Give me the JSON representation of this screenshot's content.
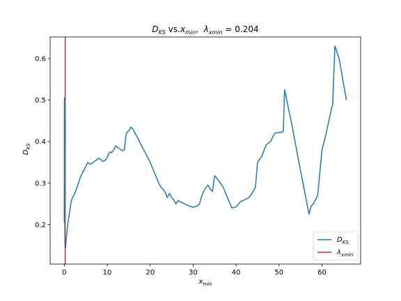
{
  "chart_data": {
    "type": "line",
    "title": "D_KS vs.x_min,  λ_xmin = 0.204",
    "title_parts": {
      "d_main": "D",
      "d_sub": "KS",
      "vs": " vs.",
      "x_main": "x",
      "x_sub": "min",
      "comma": ",  ",
      "lambda_main": "λ",
      "lambda_sub": "xmin",
      "equals": " = 0.204"
    },
    "xlabel": "x_min",
    "xlabel_parts": {
      "main": "x",
      "sub": "min"
    },
    "ylabel": "D_KS",
    "ylabel_parts": {
      "main": "D",
      "sub": "KS"
    },
    "xlim": [
      -3.3,
      69.0
    ],
    "ylim": [
      0.105,
      0.652
    ],
    "xticks": [
      0,
      10,
      20,
      30,
      40,
      50,
      60
    ],
    "xtick_labels": [
      "0",
      "10",
      "20",
      "30",
      "40",
      "50",
      "60"
    ],
    "yticks": [
      0.2,
      0.3,
      0.4,
      0.5,
      0.6
    ],
    "ytick_labels": [
      "0.2",
      "0.3",
      "0.4",
      "0.5",
      "0.6"
    ],
    "grid": false,
    "legend_position": "lower right",
    "colors": {
      "series": "#1f77b4",
      "vline": "#d62728"
    },
    "series": [
      {
        "name": "D_KS",
        "legend_main": "D",
        "legend_sub": "KS",
        "x": [
          0.0,
          0.03,
          0.06,
          0.09,
          0.12,
          0.15,
          0.18,
          0.204,
          0.3,
          0.5,
          0.8,
          1.0,
          1.3,
          1.6,
          1.9,
          2.2,
          2.6,
          3.0,
          3.3,
          3.6,
          4.0,
          4.5,
          5.0,
          5.5,
          6.0,
          6.5,
          7.0,
          7.5,
          8.0,
          8.5,
          9.0,
          9.5,
          10.0,
          10.3,
          10.6,
          11.0,
          11.5,
          12.0,
          12.5,
          13.0,
          13.5,
          14.0,
          14.3,
          14.5,
          14.8,
          15.0,
          15.5,
          16.0,
          17.0,
          18.0,
          19.0,
          20.0,
          21.0,
          22.0,
          22.5,
          23.0,
          23.5,
          24.0,
          24.5,
          25.0,
          25.5,
          26.0,
          26.5,
          27.0,
          28.0,
          29.0,
          30.0,
          31.0,
          31.5,
          32.0,
          32.5,
          33.0,
          33.5,
          34.0,
          34.5,
          35.0,
          36.0,
          37.0,
          38.0,
          39.0,
          40.0,
          41.0,
          42.0,
          43.0,
          44.0,
          44.5,
          45.0,
          46.0,
          47.0,
          48.0,
          49.0,
          50.0,
          50.5,
          51.0,
          51.3,
          53.0,
          55.0,
          57.0,
          57.5,
          58.0,
          58.5,
          59.0,
          60.0,
          61.0,
          62.0,
          62.5,
          63.0,
          64.0,
          65.0,
          65.7
        ],
        "y": [
          0.205,
          0.505,
          0.44,
          0.3,
          0.21,
          0.16,
          0.145,
          0.142,
          0.145,
          0.17,
          0.2,
          0.215,
          0.235,
          0.255,
          0.265,
          0.27,
          0.28,
          0.29,
          0.3,
          0.31,
          0.32,
          0.33,
          0.34,
          0.35,
          0.345,
          0.348,
          0.352,
          0.356,
          0.36,
          0.357,
          0.352,
          0.355,
          0.362,
          0.37,
          0.375,
          0.373,
          0.38,
          0.39,
          0.385,
          0.382,
          0.378,
          0.38,
          0.41,
          0.42,
          0.425,
          0.425,
          0.435,
          0.43,
          0.41,
          0.39,
          0.37,
          0.35,
          0.325,
          0.3,
          0.29,
          0.285,
          0.278,
          0.265,
          0.275,
          0.265,
          0.26,
          0.25,
          0.258,
          0.255,
          0.25,
          0.245,
          0.242,
          0.245,
          0.25,
          0.27,
          0.28,
          0.29,
          0.295,
          0.285,
          0.28,
          0.318,
          0.305,
          0.29,
          0.265,
          0.24,
          0.243,
          0.255,
          0.26,
          0.265,
          0.28,
          0.29,
          0.35,
          0.365,
          0.392,
          0.4,
          0.42,
          0.422,
          0.422,
          0.425,
          0.525,
          0.44,
          0.33,
          0.225,
          0.245,
          0.25,
          0.26,
          0.27,
          0.38,
          0.42,
          0.47,
          0.49,
          0.63,
          0.6,
          0.54,
          0.5
        ]
      }
    ],
    "vline": {
      "name": "λ_xmin",
      "legend_main": "λ",
      "legend_sub": "xmin",
      "x": 0.204
    }
  }
}
